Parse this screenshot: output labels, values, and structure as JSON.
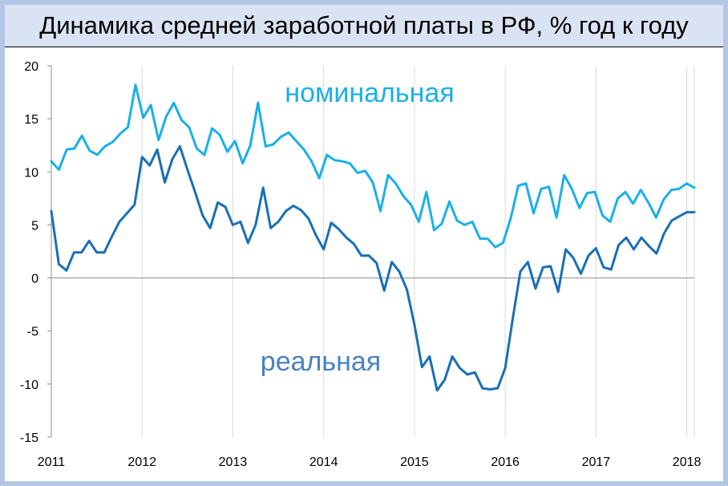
{
  "title": "Динамика средней заработной платы в РФ, % год к году",
  "colors": {
    "nominal": "#1ab0e6",
    "real": "#1a6fb4",
    "real_label": "#4a82c0",
    "frame": "#b4c7e7",
    "title_bg": "#dae3f3"
  },
  "chart_data": {
    "type": "line",
    "title": "Динамика средней заработной платы в РФ, % год к году",
    "xlabel": "",
    "ylabel": "",
    "xlim": [
      2011.0,
      2018.083
    ],
    "ylim": [
      -15,
      20
    ],
    "yticks": [
      "20",
      "15",
      "10",
      "5",
      "0",
      "-5",
      "-10",
      "-15"
    ],
    "xticks": [
      "2011",
      "2012",
      "2013",
      "2014",
      "2015",
      "2016",
      "2017",
      "2018"
    ],
    "grid": false,
    "series": [
      {
        "name": "номинальная",
        "label_text": "номинальная",
        "color": "#1ab0e6",
        "values": [
          11.0,
          10.2,
          12.1,
          12.2,
          13.4,
          12.0,
          11.6,
          12.4,
          12.8,
          13.6,
          14.2,
          18.2,
          15.1,
          16.3,
          13.0,
          15.2,
          16.5,
          14.9,
          14.2,
          12.2,
          11.6,
          14.1,
          13.5,
          11.9,
          12.9,
          10.8,
          12.5,
          16.5,
          12.4,
          12.6,
          13.3,
          13.7,
          12.9,
          12.1,
          11.0,
          9.4,
          11.6,
          11.1,
          11.0,
          10.8,
          9.9,
          10.1,
          9.0,
          6.3,
          9.7,
          8.9,
          7.7,
          6.9,
          5.3,
          8.1,
          4.5,
          5.1,
          7.2,
          5.4,
          5.0,
          5.3,
          3.7,
          3.7,
          2.9,
          3.3,
          5.6,
          8.7,
          8.9,
          6.1,
          8.4,
          8.6,
          5.7,
          9.7,
          8.4,
          6.6,
          8.0,
          8.1,
          5.9,
          5.3,
          7.5,
          8.1,
          7.0,
          8.3,
          7.1,
          5.7,
          7.4,
          8.3,
          8.4,
          8.9,
          8.5
        ]
      },
      {
        "name": "реальная",
        "label_text": "реальная",
        "color": "#1a6fb4",
        "values": [
          6.3,
          1.3,
          0.7,
          2.4,
          2.4,
          3.5,
          2.4,
          2.4,
          3.9,
          5.3,
          6.1,
          6.9,
          11.4,
          10.6,
          12.1,
          9.0,
          11.2,
          12.4,
          10.2,
          8.1,
          5.9,
          4.7,
          7.1,
          6.7,
          5.0,
          5.3,
          3.3,
          5.0,
          8.5,
          4.7,
          5.3,
          6.3,
          6.8,
          6.4,
          5.6,
          4.0,
          2.7,
          5.2,
          4.6,
          3.8,
          3.2,
          2.1,
          2.1,
          1.4,
          -1.2,
          1.5,
          0.6,
          -1.1,
          -4.4,
          -8.4,
          -7.4,
          -10.6,
          -9.6,
          -7.4,
          -8.5,
          -9.1,
          -8.9,
          -10.4,
          -10.5,
          -10.4,
          -8.5,
          -3.8,
          0.6,
          1.5,
          -1.0,
          1.0,
          1.1,
          -1.3,
          2.7,
          1.9,
          0.4,
          2.1,
          2.8,
          1.0,
          0.8,
          3.1,
          3.8,
          2.7,
          3.8,
          3.0,
          2.3,
          4.2,
          5.4,
          5.8,
          6.2,
          6.2
        ]
      }
    ]
  }
}
